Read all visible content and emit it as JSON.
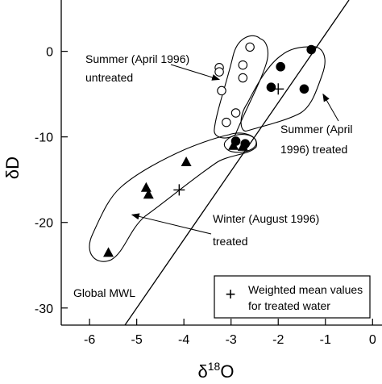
{
  "chart_data": {
    "type": "scatter",
    "xlabel_prefix": "δ",
    "xlabel_sup": "18",
    "xlabel_suffix": "O",
    "ylabel": "δD",
    "xlim": [
      -6.6,
      0.2
    ],
    "ylim": [
      -32,
      6
    ],
    "x_ticks": [
      -6,
      -5,
      -4,
      -3,
      -2,
      -1,
      0
    ],
    "y_ticks": [
      0,
      -10,
      -20,
      -30
    ],
    "grid": false,
    "series": [
      {
        "name": "Summer (April 1996) untreated",
        "marker": "open-circle",
        "points": [
          {
            "x": -2.6,
            "y": 0.5
          },
          {
            "x": -2.75,
            "y": -1.6
          },
          {
            "x": -3.25,
            "y": -1.9
          },
          {
            "x": -3.25,
            "y": -2.4
          },
          {
            "x": -3.2,
            "y": -4.6
          },
          {
            "x": -2.75,
            "y": -3.1
          },
          {
            "x": -2.9,
            "y": -7.2
          },
          {
            "x": -3.1,
            "y": -8.3
          }
        ]
      },
      {
        "name": "Summer (April 1996) treated",
        "marker": "filled-circle",
        "points": [
          {
            "x": -1.3,
            "y": 0.2
          },
          {
            "x": -1.95,
            "y": -1.8
          },
          {
            "x": -2.15,
            "y": -4.2
          },
          {
            "x": -1.45,
            "y": -4.4
          },
          {
            "x": -2.9,
            "y": -10.5
          },
          {
            "x": -2.7,
            "y": -10.8
          }
        ]
      },
      {
        "name": "Winter (August 1996) treated",
        "marker": "filled-triangle",
        "points": [
          {
            "x": -5.6,
            "y": -23.5
          },
          {
            "x": -4.8,
            "y": -15.9
          },
          {
            "x": -4.75,
            "y": -16.7
          },
          {
            "x": -3.95,
            "y": -12.9
          },
          {
            "x": -2.95,
            "y": -11.0
          },
          {
            "x": -2.75,
            "y": -11.1
          }
        ]
      },
      {
        "name": "Weighted mean values for treated water",
        "marker": "plus",
        "points": [
          {
            "x": -2.0,
            "y": -4.4
          },
          {
            "x": -4.1,
            "y": -16.2
          }
        ]
      }
    ],
    "mwl": {
      "label": "Global MWL",
      "slope": 8,
      "intercept": 10
    },
    "annotations": [
      {
        "lines": [
          "Summer (April 1996)",
          "untreated"
        ],
        "anchor": "start",
        "arrow_to": {
          "x": -3.25,
          "y": -3.3
        }
      },
      {
        "lines": [
          "Summer (April",
          "1996) treated"
        ],
        "anchor": "start",
        "arrow_to": {
          "x": -1.05,
          "y": -5.0
        }
      },
      {
        "lines": [
          "Winter (August 1996)",
          "treated"
        ],
        "anchor": "start",
        "arrow_to": {
          "x": -5.1,
          "y": -19.1
        }
      }
    ],
    "legend": {
      "position": "bottom-right",
      "symbol": "+",
      "lines": [
        "Weighted mean values",
        "for treated water"
      ]
    }
  }
}
